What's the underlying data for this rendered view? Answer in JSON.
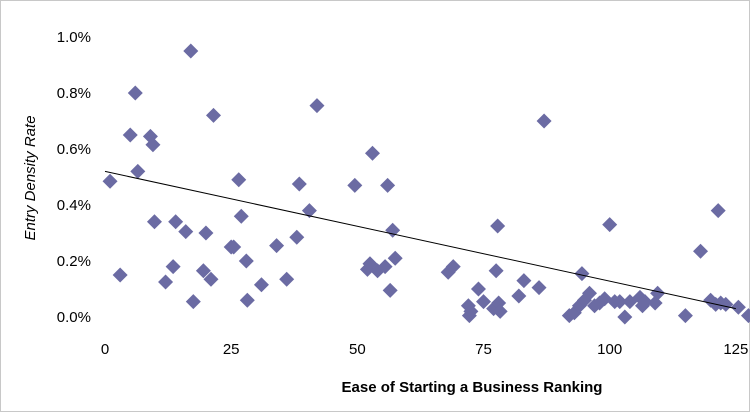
{
  "chart_data": {
    "type": "scatter",
    "xlabel": "Ease of Starting a Business Ranking",
    "ylabel": "Entry Density Rate",
    "xlim": [
      0,
      128
    ],
    "ylim": [
      0,
      1.0
    ],
    "x_ticks": [
      0,
      25,
      50,
      75,
      100,
      125
    ],
    "x_tick_labels": [
      "0",
      "25",
      "50",
      "75",
      "100",
      "125"
    ],
    "y_ticks": [
      0,
      0.2,
      0.4,
      0.6,
      0.8,
      1.0
    ],
    "y_tick_labels": [
      "0.0%",
      "0.2%",
      "0.4%",
      "0.6%",
      "0.8%",
      "1.0%"
    ],
    "grid": false,
    "marker_color": "#6b6ba3",
    "trendline": {
      "x": [
        0,
        125
      ],
      "y": [
        0.52,
        0.03
      ],
      "color": "#000000"
    },
    "series": [
      {
        "x": [
          1,
          3,
          5,
          6,
          6.5,
          9,
          9.5,
          9.8,
          12,
          13.5,
          14,
          16,
          17,
          17.5,
          19.5,
          20,
          21,
          21.5,
          25,
          25.5,
          26.5,
          27,
          28,
          28.2,
          31,
          34,
          36,
          38,
          38.5,
          40.5,
          42,
          49.5,
          52,
          52.5,
          53,
          54,
          55.5,
          56,
          56.5,
          57,
          57.5,
          68,
          69,
          72,
          72.2,
          72.5,
          74,
          75,
          77,
          77.5,
          77.8,
          78,
          78.3,
          82,
          83,
          86,
          87,
          92,
          93,
          94,
          94.5,
          95,
          96,
          97,
          98,
          99,
          100,
          101,
          102,
          103,
          104,
          106,
          106.5,
          107,
          109,
          109.5,
          115,
          118,
          120,
          121,
          121.5,
          122,
          123,
          125.5,
          127.5
        ],
        "y": [
          0.485,
          0.15,
          0.65,
          0.8,
          0.52,
          0.645,
          0.615,
          0.34,
          0.125,
          0.18,
          0.34,
          0.305,
          0.95,
          0.055,
          0.165,
          0.3,
          0.135,
          0.72,
          0.25,
          0.25,
          0.49,
          0.36,
          0.2,
          0.06,
          0.115,
          0.255,
          0.135,
          0.285,
          0.475,
          0.38,
          0.755,
          0.47,
          0.17,
          0.19,
          0.585,
          0.165,
          0.18,
          0.47,
          0.095,
          0.31,
          0.21,
          0.16,
          0.18,
          0.04,
          0.005,
          0.02,
          0.1,
          0.055,
          0.03,
          0.165,
          0.325,
          0.05,
          0.02,
          0.075,
          0.13,
          0.105,
          0.7,
          0.005,
          0.015,
          0.04,
          0.155,
          0.06,
          0.085,
          0.04,
          0.05,
          0.065,
          0.33,
          0.055,
          0.055,
          0.0,
          0.055,
          0.07,
          0.04,
          0.055,
          0.05,
          0.085,
          0.005,
          0.235,
          0.06,
          0.045,
          0.38,
          0.05,
          0.045,
          0.035,
          0.005
        ]
      }
    ]
  }
}
